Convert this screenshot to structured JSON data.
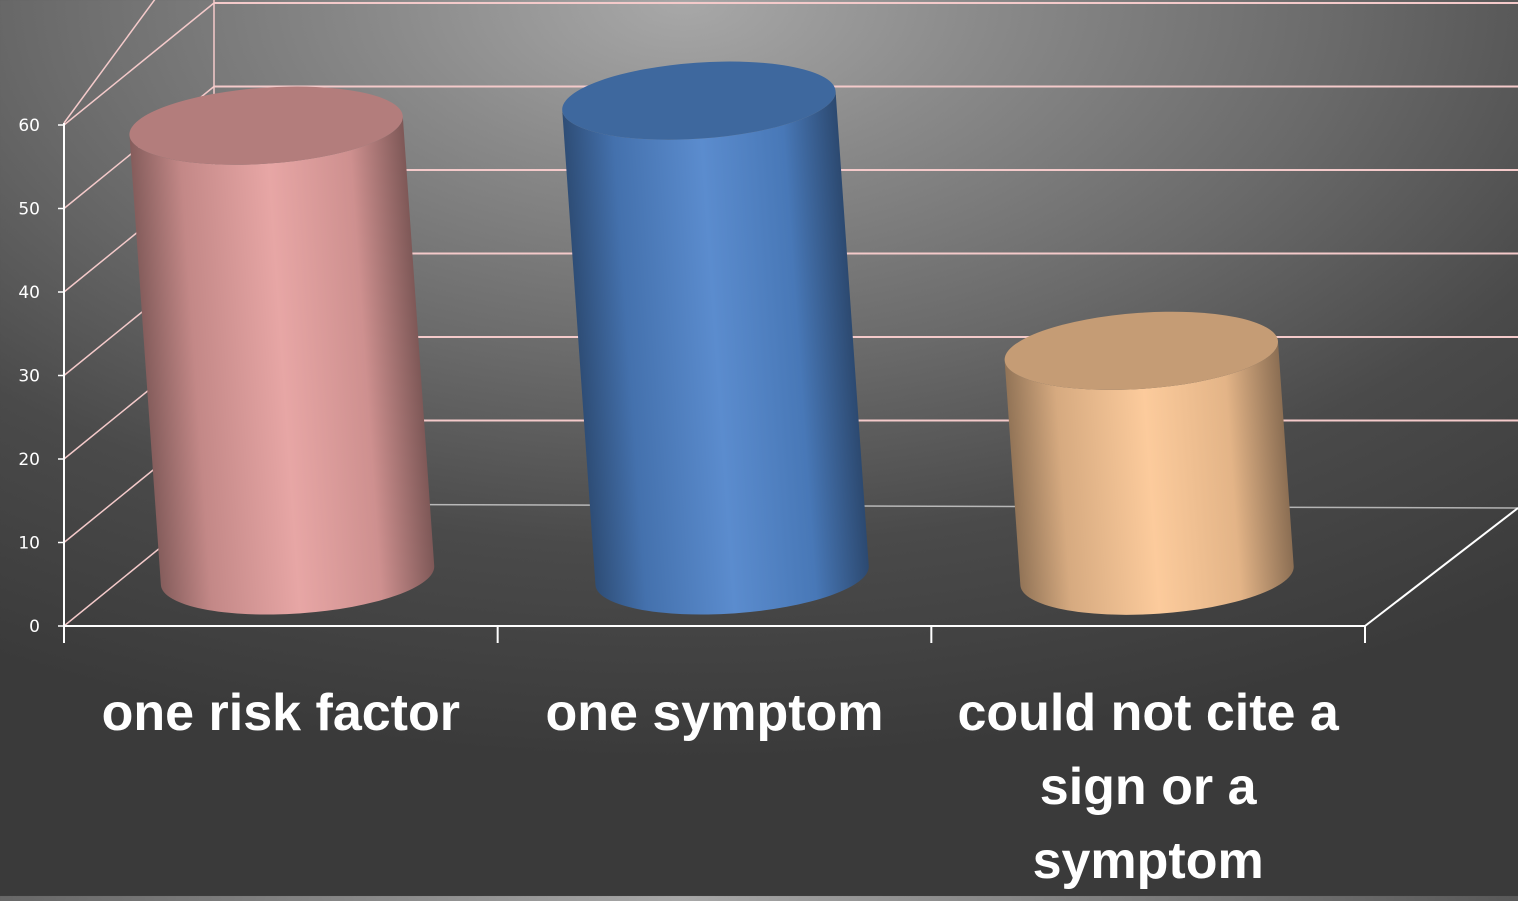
{
  "chart_data": {
    "type": "bar",
    "style": "3d-cylinder",
    "categories": [
      "one risk factor",
      "one symptom",
      "could not cite a sign or a symptom"
    ],
    "category_label_lines": [
      [
        "one risk factor"
      ],
      [
        "one symptom"
      ],
      [
        "could not cite a",
        "sign or a",
        "symptom"
      ]
    ],
    "values": [
      54,
      57,
      27
    ],
    "bar_colors": [
      "#E5A09F",
      "#5085CB",
      "#FCC896"
    ],
    "ylim": [
      0,
      60
    ],
    "yticks": [
      0,
      10,
      20,
      30,
      40,
      50,
      60
    ],
    "grid": true,
    "gridline_color": "#F4CACA",
    "title": "",
    "xlabel": "",
    "ylabel": ""
  }
}
